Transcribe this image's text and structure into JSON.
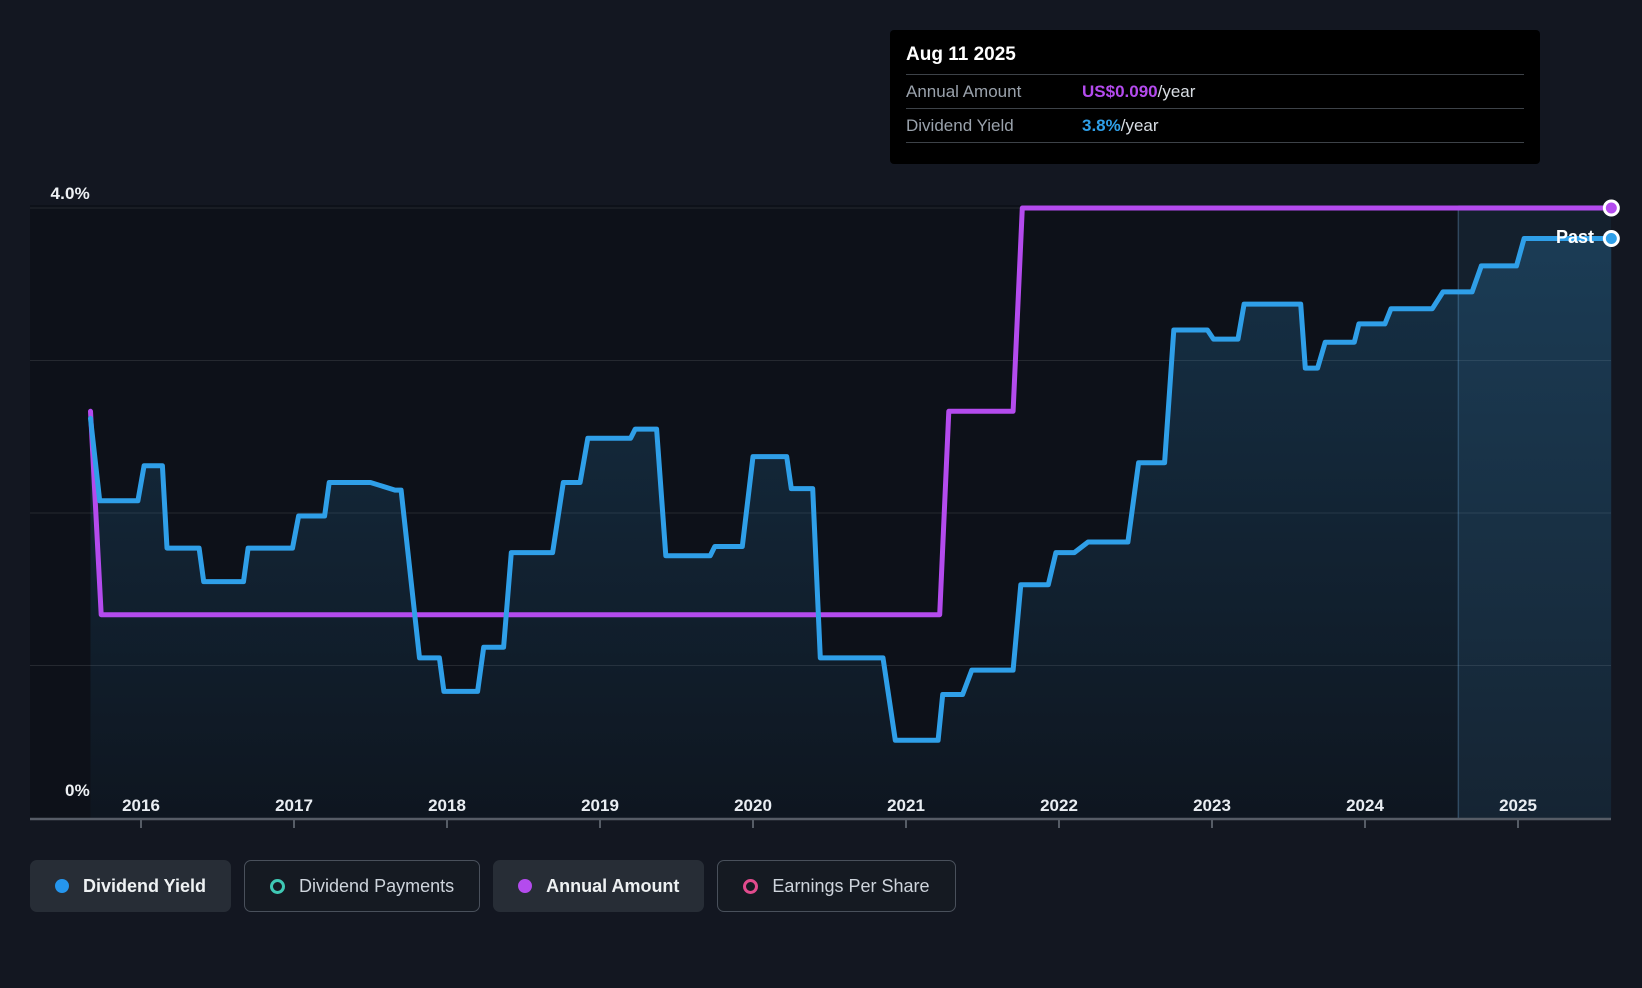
{
  "tooltip": {
    "date": "Aug 11 2025",
    "rows": [
      {
        "label": "Annual Amount",
        "value": "US$0.090",
        "suffix": "/year",
        "kind": "annual"
      },
      {
        "label": "Dividend Yield",
        "value": "3.8%",
        "suffix": "/year",
        "kind": "yield"
      }
    ]
  },
  "past_label": "Past",
  "y_axis": {
    "top_label": "4.0%",
    "bottom_label": "0%"
  },
  "x_axis": {
    "years": [
      "2016",
      "2017",
      "2018",
      "2019",
      "2020",
      "2021",
      "2022",
      "2023",
      "2024",
      "2025"
    ]
  },
  "legend": [
    {
      "label": "Dividend Yield",
      "marker": "dot",
      "color": "#2596ee",
      "active": true,
      "name": "legend-dividend-yield"
    },
    {
      "label": "Dividend Payments",
      "marker": "ring",
      "color": "#3fc8b4",
      "active": false,
      "name": "legend-dividend-payments"
    },
    {
      "label": "Annual Amount",
      "marker": "dot",
      "color": "#b44bee",
      "active": true,
      "name": "legend-annual-amount"
    },
    {
      "label": "Earnings Per Share",
      "marker": "ring",
      "color": "#e14b8d",
      "active": false,
      "name": "legend-earnings-per-share"
    }
  ],
  "colors": {
    "background": "#131721",
    "plot_background": "#0d1119",
    "grid": "rgba(255,255,255,0.10)",
    "axis": "#565c66",
    "yield_line": "#2f9fe8",
    "amount_line": "#b44bee",
    "area_fill_top": "rgba(47,139,199,0.26)",
    "area_fill_bottom": "rgba(47,139,199,0.04)",
    "past_band": "rgba(90,165,225,0.10)",
    "past_divider": "rgba(130,190,240,0.28)",
    "marker_ring": "#ffffff"
  },
  "chart_data": {
    "type": "line",
    "title": "Dividend yield and annual amount history",
    "x_range": [
      2015.67,
      2025.63
    ],
    "x_ticks": [
      2016,
      2017,
      2018,
      2019,
      2020,
      2021,
      2022,
      2023,
      2024,
      2025
    ],
    "y_axis_percent": {
      "min": 0,
      "max": 4.0,
      "gridlines": [
        1,
        2,
        3,
        4
      ],
      "tick_labels": [
        "0%",
        "4.0%"
      ]
    },
    "past_band_start": 2024.61,
    "legend_position": "bottom",
    "grid": true,
    "series": [
      {
        "name": "Dividend Yield",
        "unit": "%",
        "style": "step-line-with-area",
        "y_top_value": 4.0,
        "end_marker": true,
        "points": [
          [
            2015.67,
            2.62
          ],
          [
            2015.73,
            2.08
          ],
          [
            2015.98,
            2.08
          ],
          [
            2016.02,
            2.31
          ],
          [
            2016.14,
            2.31
          ],
          [
            2016.17,
            1.77
          ],
          [
            2016.38,
            1.77
          ],
          [
            2016.41,
            1.55
          ],
          [
            2016.67,
            1.55
          ],
          [
            2016.7,
            1.77
          ],
          [
            2016.99,
            1.77
          ],
          [
            2017.03,
            1.98
          ],
          [
            2017.2,
            1.98
          ],
          [
            2017.23,
            2.2
          ],
          [
            2017.5,
            2.2
          ],
          [
            2017.66,
            2.15
          ],
          [
            2017.7,
            2.15
          ],
          [
            2017.82,
            1.05
          ],
          [
            2017.95,
            1.05
          ],
          [
            2017.98,
            0.83
          ],
          [
            2018.2,
            0.83
          ],
          [
            2018.24,
            1.12
          ],
          [
            2018.37,
            1.12
          ],
          [
            2018.42,
            1.74
          ],
          [
            2018.69,
            1.74
          ],
          [
            2018.76,
            2.2
          ],
          [
            2018.87,
            2.2
          ],
          [
            2018.92,
            2.49
          ],
          [
            2019.2,
            2.49
          ],
          [
            2019.23,
            2.55
          ],
          [
            2019.37,
            2.55
          ],
          [
            2019.43,
            1.72
          ],
          [
            2019.72,
            1.72
          ],
          [
            2019.75,
            1.78
          ],
          [
            2019.93,
            1.78
          ],
          [
            2020.0,
            2.37
          ],
          [
            2020.22,
            2.37
          ],
          [
            2020.25,
            2.16
          ],
          [
            2020.39,
            2.16
          ],
          [
            2020.44,
            1.05
          ],
          [
            2020.85,
            1.05
          ],
          [
            2020.93,
            0.51
          ],
          [
            2021.21,
            0.51
          ],
          [
            2021.24,
            0.81
          ],
          [
            2021.37,
            0.81
          ],
          [
            2021.43,
            0.97
          ],
          [
            2021.7,
            0.97
          ],
          [
            2021.75,
            1.53
          ],
          [
            2021.93,
            1.53
          ],
          [
            2021.98,
            1.74
          ],
          [
            2022.1,
            1.74
          ],
          [
            2022.19,
            1.81
          ],
          [
            2022.45,
            1.81
          ],
          [
            2022.52,
            2.33
          ],
          [
            2022.69,
            2.33
          ],
          [
            2022.75,
            3.2
          ],
          [
            2022.97,
            3.2
          ],
          [
            2023.01,
            3.14
          ],
          [
            2023.17,
            3.14
          ],
          [
            2023.21,
            3.37
          ],
          [
            2023.58,
            3.37
          ],
          [
            2023.61,
            2.95
          ],
          [
            2023.69,
            2.95
          ],
          [
            2023.74,
            3.12
          ],
          [
            2023.93,
            3.12
          ],
          [
            2023.96,
            3.24
          ],
          [
            2024.13,
            3.24
          ],
          [
            2024.17,
            3.34
          ],
          [
            2024.44,
            3.34
          ],
          [
            2024.51,
            3.45
          ],
          [
            2024.7,
            3.45
          ],
          [
            2024.76,
            3.62
          ],
          [
            2024.99,
            3.62
          ],
          [
            2025.04,
            3.8
          ],
          [
            2025.61,
            3.8
          ]
        ]
      },
      {
        "name": "Annual Amount",
        "unit": "US$/year",
        "style": "step-line",
        "y_top_value": 0.09,
        "end_marker": true,
        "points": [
          [
            2015.67,
            0.06
          ],
          [
            2015.74,
            0.03
          ],
          [
            2021.22,
            0.03
          ],
          [
            2021.28,
            0.06
          ],
          [
            2021.7,
            0.06
          ],
          [
            2021.76,
            0.09
          ],
          [
            2025.61,
            0.09
          ]
        ]
      }
    ],
    "annotations": [
      {
        "text": "Past",
        "x": 2025.5,
        "y_percent": 3.8
      }
    ]
  }
}
